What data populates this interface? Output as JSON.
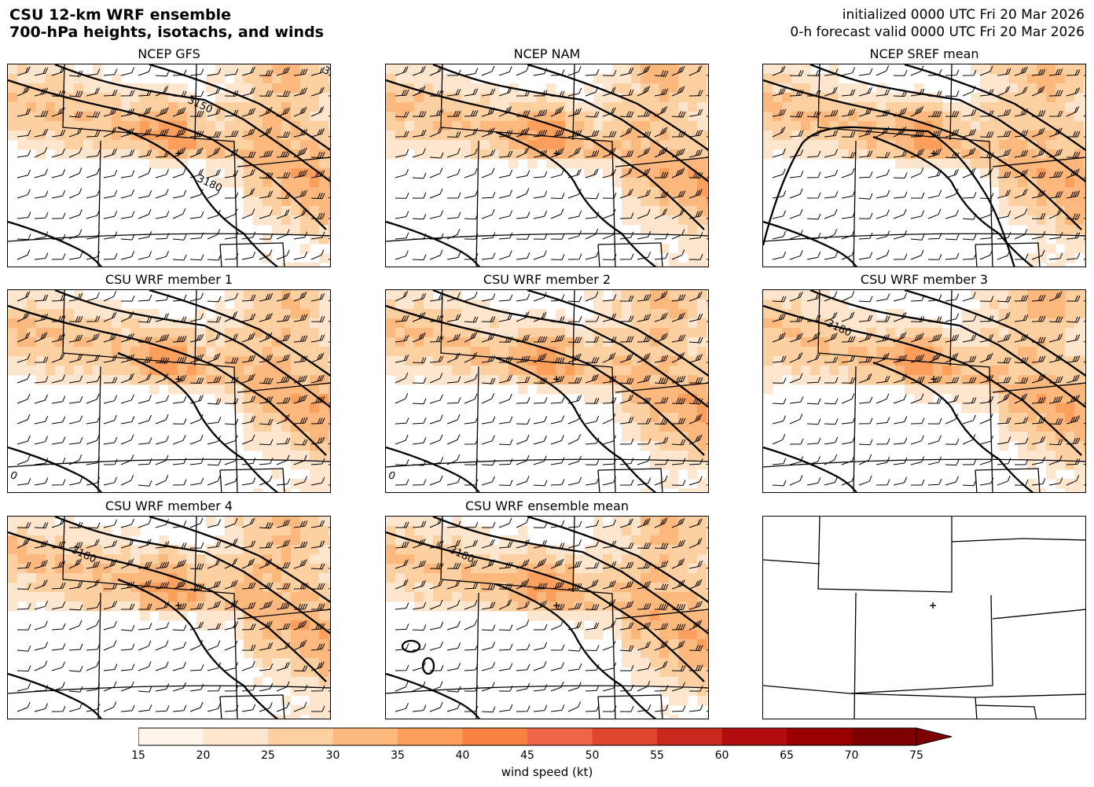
{
  "header": {
    "title_line1": "CSU 12-km WRF ensemble",
    "title_line2": "700-hPa heights, isotachs, and winds",
    "init_line": "initialized 0000 UTC Fri 20 Mar 2026",
    "valid_line": "0-h forecast valid 0000 UTC Fri 20 Mar 2026"
  },
  "panels": [
    {
      "title": "NCEP GFS",
      "contours": [
        "3150",
        "3180",
        "30"
      ]
    },
    {
      "title": "NCEP NAM",
      "contours": []
    },
    {
      "title": "NCEP SREF mean",
      "contours": []
    },
    {
      "title": "CSU WRF member 1",
      "contours": [
        "0"
      ]
    },
    {
      "title": "CSU WRF member 2",
      "contours": [
        "0"
      ]
    },
    {
      "title": "CSU WRF member 3",
      "contours": [
        "3180"
      ]
    },
    {
      "title": "CSU WRF member 4",
      "contours": [
        "3180"
      ]
    },
    {
      "title": "CSU WRF ensemble mean",
      "contours": [
        "3180"
      ]
    },
    {
      "title": "",
      "contours": []
    }
  ],
  "colorbar": {
    "label": "wind speed (kt)",
    "ticks": [
      "15",
      "20",
      "25",
      "30",
      "35",
      "40",
      "45",
      "50",
      "55",
      "60",
      "65",
      "70",
      "75"
    ],
    "colors": [
      "#fff5eb",
      "#fee6ce",
      "#fdd0a2",
      "#fdb97d",
      "#fd9f5c",
      "#f98142",
      "#ef6548",
      "#e0452f",
      "#c9281d",
      "#b10d0e",
      "#990000",
      "#7f0000"
    ],
    "extend": "max"
  },
  "map_colors": {
    "boundary": "#000000",
    "contour": "#000000",
    "barb": "#000000"
  }
}
